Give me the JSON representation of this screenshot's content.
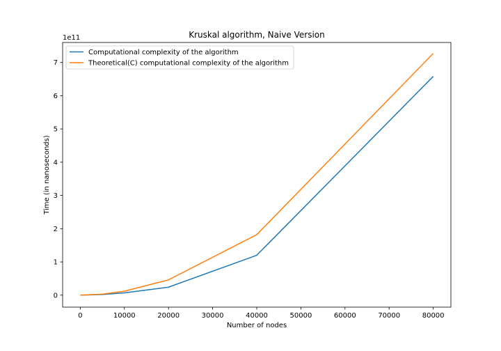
{
  "chart_data": {
    "type": "line",
    "title": "Kruskal algorithm, Naive Version",
    "xlabel": "Number of nodes",
    "ylabel": "Time (in nanoseconds)",
    "y_offset_label": "1e11",
    "xlim": [
      -4000,
      84000
    ],
    "ylim": [
      -0.36,
      7.6
    ],
    "y_scale_factor": 100000000000.0,
    "x_ticks": [
      0,
      10000,
      20000,
      30000,
      40000,
      50000,
      60000,
      70000,
      80000
    ],
    "x_tick_labels": [
      "0",
      "10000",
      "20000",
      "30000",
      "40000",
      "50000",
      "60000",
      "70000",
      "80000"
    ],
    "y_ticks": [
      0,
      1,
      2,
      3,
      4,
      5,
      6,
      7
    ],
    "y_tick_labels": [
      "0",
      "1",
      "2",
      "3",
      "4",
      "5",
      "6",
      "7"
    ],
    "grid": false,
    "legend_position": "top-left",
    "series": [
      {
        "name": "Computational complexity of the algorithm",
        "color": "#1f77b4",
        "x": [
          0,
          5000,
          10000,
          20000,
          40000,
          80000
        ],
        "y": [
          0.0,
          0.02,
          0.07,
          0.24,
          1.2,
          6.58
        ]
      },
      {
        "name": "Theoretical(C) computational complexity of the algorithm",
        "color": "#ff7f0e",
        "x": [
          0,
          5000,
          10000,
          20000,
          40000,
          80000
        ],
        "y": [
          0.0,
          0.03,
          0.12,
          0.46,
          1.82,
          7.27
        ]
      }
    ]
  }
}
